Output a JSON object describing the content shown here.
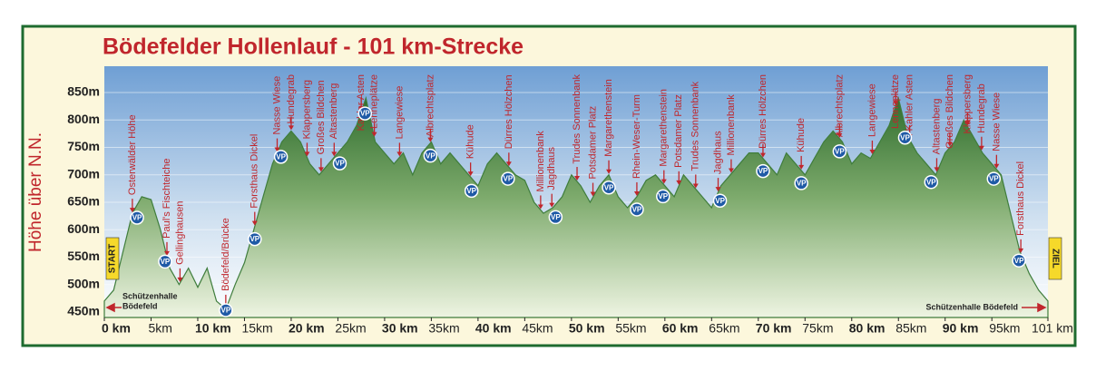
{
  "chart_data": {
    "type": "area",
    "title": "Bödefelder Hollenlauf - 101 km-Strecke",
    "y_label": "Höhe über N.N.",
    "x": [
      0,
      1,
      2,
      3,
      4,
      5,
      6,
      7,
      8,
      9,
      10,
      11,
      12,
      13,
      14,
      15,
      16,
      17,
      18,
      19,
      20,
      21,
      22,
      23,
      24,
      25,
      26,
      27,
      28,
      29,
      30,
      31,
      32,
      33,
      34,
      35,
      36,
      37,
      38,
      39,
      40,
      41,
      42,
      43,
      44,
      45,
      46,
      47,
      48,
      49,
      50,
      51,
      52,
      53,
      54,
      55,
      56,
      57,
      58,
      59,
      60,
      61,
      62,
      63,
      64,
      65,
      66,
      67,
      68,
      69,
      70,
      71,
      72,
      73,
      74,
      75,
      76,
      77,
      78,
      79,
      80,
      81,
      82,
      83,
      84,
      85,
      86,
      87,
      88,
      89,
      90,
      91,
      92,
      93,
      94,
      95,
      96,
      97,
      98,
      99,
      100,
      101
    ],
    "values": [
      470,
      490,
      560,
      630,
      660,
      655,
      600,
      530,
      500,
      530,
      495,
      530,
      470,
      455,
      500,
      540,
      600,
      660,
      720,
      760,
      780,
      760,
      720,
      700,
      720,
      740,
      760,
      790,
      840,
      760,
      740,
      720,
      740,
      700,
      740,
      760,
      720,
      740,
      720,
      700,
      680,
      720,
      740,
      720,
      700,
      690,
      650,
      630,
      640,
      660,
      700,
      680,
      650,
      680,
      700,
      660,
      640,
      660,
      690,
      700,
      680,
      660,
      700,
      680,
      660,
      640,
      680,
      700,
      720,
      740,
      740,
      720,
      700,
      740,
      720,
      700,
      730,
      760,
      780,
      760,
      720,
      740,
      730,
      760,
      790,
      840,
      770,
      740,
      720,
      700,
      740,
      760,
      800,
      770,
      740,
      720,
      700,
      630,
      560,
      520,
      490,
      470
    ],
    "color": "#3f7d3c",
    "xlim": [
      0,
      101
    ],
    "ylim": [
      440,
      898
    ],
    "grid": true,
    "yticks": [
      {
        "value": 450,
        "label": "450m"
      },
      {
        "value": 500,
        "label": "500m"
      },
      {
        "value": 550,
        "label": "550m"
      },
      {
        "value": 600,
        "label": "600m"
      },
      {
        "value": 650,
        "label": "650m"
      },
      {
        "value": 700,
        "label": "700m"
      },
      {
        "value": 750,
        "label": "750m"
      },
      {
        "value": 800,
        "label": "800m"
      },
      {
        "value": 850,
        "label": "850m"
      }
    ],
    "xticks": [
      {
        "value": 0,
        "label": "0 km"
      },
      {
        "value": 5,
        "label": "5km"
      },
      {
        "value": 10,
        "label": "10 km"
      },
      {
        "value": 15,
        "label": "15km"
      },
      {
        "value": 20,
        "label": "20 km"
      },
      {
        "value": 25,
        "label": "25km"
      },
      {
        "value": 30,
        "label": "30 km"
      },
      {
        "value": 35,
        "label": "35km"
      },
      {
        "value": 40,
        "label": "40 km"
      },
      {
        "value": 45,
        "label": "45km"
      },
      {
        "value": 50,
        "label": "50 km"
      },
      {
        "value": 55,
        "label": "55km"
      },
      {
        "value": 60,
        "label": "60 km"
      },
      {
        "value": 65,
        "label": "65km"
      },
      {
        "value": 70,
        "label": "70 km"
      },
      {
        "value": 75,
        "label": "75km"
      },
      {
        "value": 80,
        "label": "80 km"
      },
      {
        "value": 85,
        "label": "85km"
      },
      {
        "value": 90,
        "label": "90 km"
      },
      {
        "value": 95,
        "label": "95km"
      },
      {
        "value": 101,
        "label": "101 km"
      }
    ],
    "start": {
      "label": "START",
      "place": [
        "Schützenhalle",
        "Bödefeld"
      ]
    },
    "finish": {
      "label": "ZIEL",
      "place": "Schützenhalle Bödefeld"
    },
    "vp": {
      "label": "VP",
      "km": [
        3.5,
        6.5,
        13,
        16.1,
        18.9,
        25.2,
        27.9,
        34.9,
        39.3,
        43.2,
        48.3,
        54,
        57,
        59.8,
        65.9,
        70.5,
        74.6,
        78.7,
        85.7,
        88.5,
        95.2,
        97.9
      ]
    },
    "waypoints": [
      {
        "name": "Osterwälder Höhe",
        "km": 3
      },
      {
        "name": "Paul's Fischteiche",
        "km": 6.7
      },
      {
        "name": "Gellinghausen",
        "km": 8.1
      },
      {
        "name": "Bödefeld/Brücke",
        "km": 13
      },
      {
        "name": "Forsthaus Dickel",
        "km": 16.1
      },
      {
        "name": "Nasse Wiese",
        "km": 18.5
      },
      {
        "name": "Hundegrab",
        "km": 20
      },
      {
        "name": "Klappersberg",
        "km": 21.7
      },
      {
        "name": "Großes Bildchen",
        "km": 23.2
      },
      {
        "name": "Altastenberg",
        "km": 24.6
      },
      {
        "name": "Kahler Asten",
        "km": 27.5
      },
      {
        "name": "Lenneplätze",
        "km": 28.9
      },
      {
        "name": "Langewiese",
        "km": 31.6
      },
      {
        "name": "Albrechtsplatz",
        "km": 34.9
      },
      {
        "name": "Kühude",
        "km": 39.2
      },
      {
        "name": "Dürres Hölzchen",
        "km": 43.3
      },
      {
        "name": "Millionenbank",
        "km": 46.7
      },
      {
        "name": "Jagdhaus",
        "km": 47.9
      },
      {
        "name": "Trudes Sonnenbank",
        "km": 50.6
      },
      {
        "name": "Potsdamer Platz",
        "km": 52.3
      },
      {
        "name": "Margarethenstein",
        "km": 54
      },
      {
        "name": "Rhein-Weser-Turm",
        "km": 57
      },
      {
        "name": "Margarethenstein",
        "km": 59.9
      },
      {
        "name": "Potsdamer Platz",
        "km": 61.5
      },
      {
        "name": "Trudes Sonnenbank",
        "km": 63.3
      },
      {
        "name": "Jagdhaus",
        "km": 65.7
      },
      {
        "name": "Millionenbank",
        "km": 67.1
      },
      {
        "name": "Dürres Hölzchen",
        "km": 70.5
      },
      {
        "name": "Kühude",
        "km": 74.6
      },
      {
        "name": "Albrechtsplatz",
        "km": 78.7
      },
      {
        "name": "Langewiese",
        "km": 82.2
      },
      {
        "name": "Lenneplätze",
        "km": 84.7
      },
      {
        "name": "Kahler Asten",
        "km": 86.2
      },
      {
        "name": "Altastenberg",
        "km": 89.1
      },
      {
        "name": "Großes Bildchen",
        "km": 90.5
      },
      {
        "name": "Klappersberg",
        "km": 92.4
      },
      {
        "name": "Hundegrab",
        "km": 93.9
      },
      {
        "name": "Nasse Wiese",
        "km": 95.5
      },
      {
        "name": "Forsthaus Dickel",
        "km": 98.1
      }
    ]
  }
}
